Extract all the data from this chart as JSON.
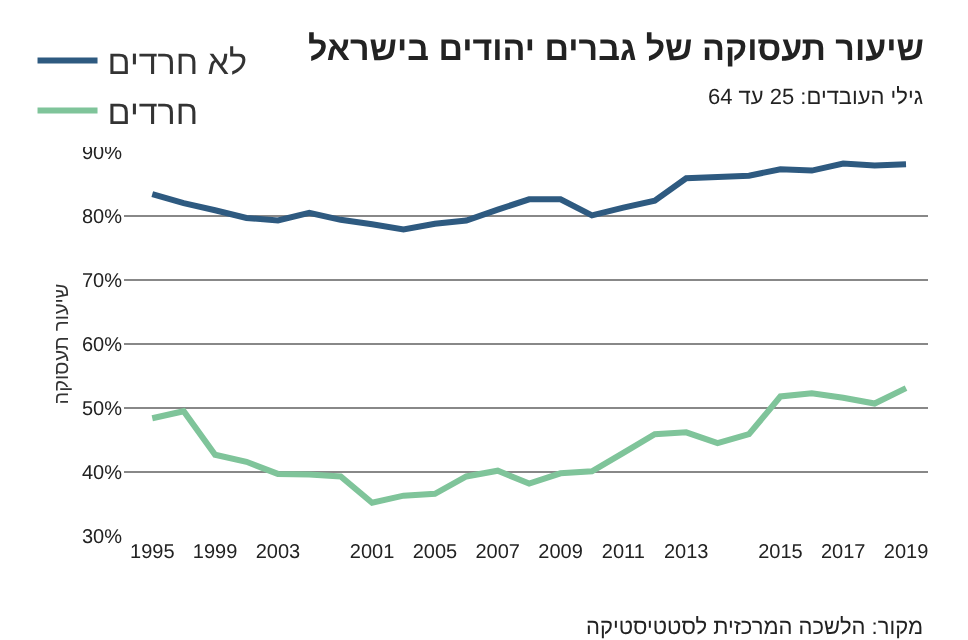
{
  "chart_data": {
    "type": "line",
    "title": "שיעור תעסוקה של גברים יהודים בישראל",
    "subtitle": "גילי העובדים: 25 עד 64",
    "ylabel": "שיעור תעסוקה",
    "categories": [
      "1995",
      null,
      "1999",
      null,
      "2003",
      null,
      null,
      "2001",
      null,
      "2005",
      null,
      "2007",
      null,
      "2009",
      null,
      "2011",
      null,
      "2013",
      null,
      null,
      "2015",
      null,
      "2017",
      null,
      "2019"
    ],
    "series": [
      {
        "name": "לא חרדים",
        "color": "#2e5a80",
        "values": [
          83.4,
          82.0,
          80.9,
          79.7,
          79.3,
          80.5,
          79.4,
          78.7,
          77.9,
          78.8,
          79.3,
          81.0,
          82.6,
          82.6,
          80.1,
          81.3,
          82.4,
          85.9,
          86.1,
          86.3,
          87.3,
          87.1,
          88.2,
          87.9,
          88.1
        ]
      },
      {
        "name": "חרדים",
        "color": "#7fc49a",
        "values": [
          48.4,
          49.5,
          42.7,
          41.6,
          39.7,
          39.6,
          39.3,
          35.2,
          36.3,
          36.6,
          39.3,
          40.2,
          38.2,
          39.8,
          40.1,
          43.0,
          45.9,
          46.2,
          44.5,
          45.9,
          51.8,
          52.3,
          51.6,
          50.7,
          53.1
        ]
      }
    ],
    "ylim": [
      30,
      90
    ],
    "yticks": [
      {
        "value": 30,
        "label": "30%"
      },
      {
        "value": 40,
        "label": "40%"
      },
      {
        "value": 50,
        "label": "50%"
      },
      {
        "value": 60,
        "label": "60%"
      },
      {
        "value": 70,
        "label": "70%"
      },
      {
        "value": 80,
        "label": "80%"
      },
      {
        "value": 90,
        "label": "90%"
      }
    ],
    "grid": "y",
    "legend": "top left",
    "marker": "none",
    "line_style": "solid",
    "annotations": [
      "מקור: הלשכה המרכזית לסטטיסטיקה"
    ]
  }
}
